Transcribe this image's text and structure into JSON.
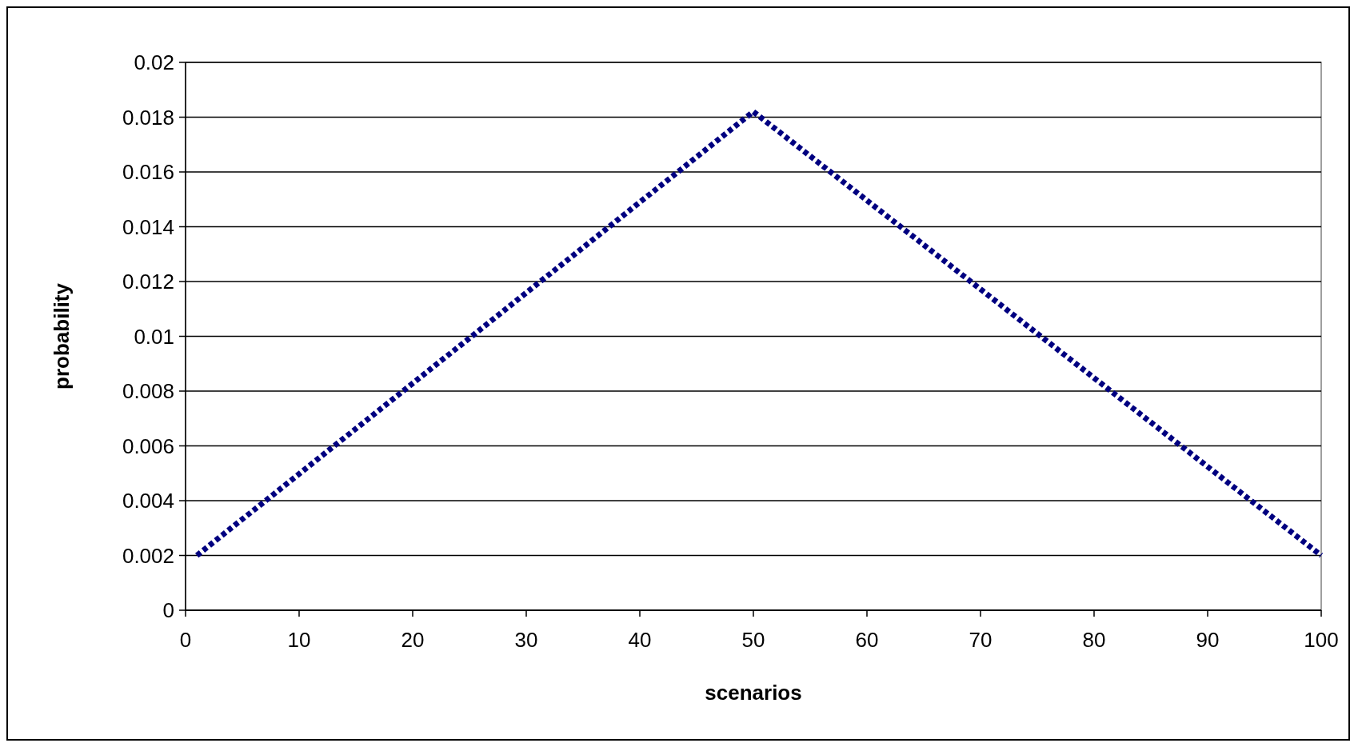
{
  "chart_data": {
    "type": "line",
    "xlabel": "scenarios",
    "ylabel": "probability",
    "x": [
      1,
      50,
      100
    ],
    "series": [
      {
        "color": "#000080",
        "values": [
          0.002,
          0.0182,
          0.002
        ]
      }
    ],
    "xlim": [
      0,
      100
    ],
    "xticks": [
      0,
      10,
      20,
      30,
      40,
      50,
      60,
      70,
      80,
      90,
      100
    ],
    "ylim": [
      0,
      0.02
    ],
    "yticks": [
      0,
      0.002,
      0.004,
      0.006,
      0.008,
      0.01,
      0.012,
      0.014,
      0.016,
      0.018,
      0.02
    ],
    "grid": "y",
    "line_style": "dotted",
    "marker": "none"
  }
}
